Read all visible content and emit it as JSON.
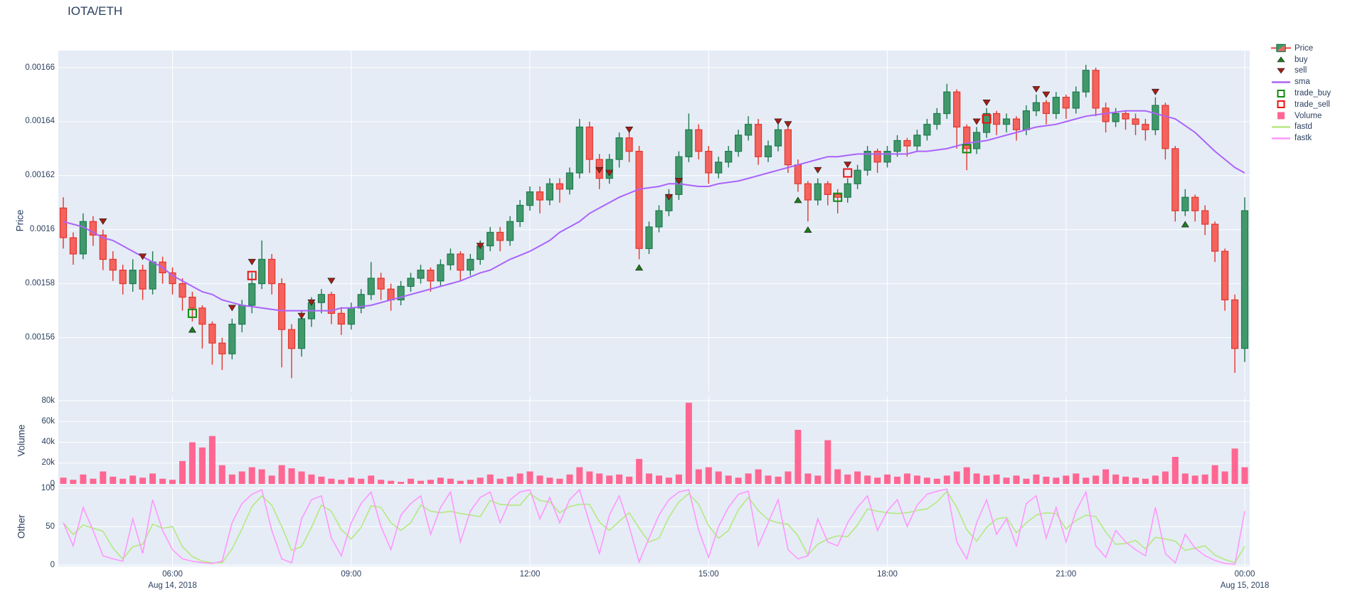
{
  "title": "IOTA/ETH",
  "colors": {
    "text": "#2a3f5f",
    "plot_bg": "#e5ecf6",
    "grid": "#ffffff",
    "inc_line": "#1f7a4d",
    "inc_fill": "#41996b",
    "dec_line": "#e3362c",
    "dec_fill": "#f4635e",
    "sma": "#ab63fa",
    "volume": "#ff6692",
    "fastd": "#b6e880",
    "fastk": "#ff97ff",
    "buy": "#1e7b1e",
    "sell": "#a61e14",
    "marker_edge": "#1a1a1a",
    "trade_buy": "#0c8a0c",
    "trade_sell": "#ee1111"
  },
  "axes": {
    "price": {
      "title": "Price",
      "ticks": [
        {
          "label": "0.00166",
          "v": 1660
        },
        {
          "label": "0.00164",
          "v": 1640
        },
        {
          "label": "0.00162",
          "v": 1620
        },
        {
          "label": "0.0016",
          "v": 1600
        },
        {
          "label": "0.00158",
          "v": 1580
        },
        {
          "label": "0.00156",
          "v": 1560
        }
      ]
    },
    "volume": {
      "title": "Volume",
      "ticks": [
        {
          "label": "80k",
          "v": 80
        },
        {
          "label": "60k",
          "v": 60
        },
        {
          "label": "40k",
          "v": 40
        },
        {
          "label": "20k",
          "v": 20
        },
        {
          "label": "0",
          "v": 0
        }
      ]
    },
    "other": {
      "title": "Other",
      "ticks": [
        {
          "label": "100",
          "v": 100
        },
        {
          "label": "50",
          "v": 50
        },
        {
          "label": "0",
          "v": 0
        }
      ]
    },
    "x": {
      "ticks": [
        {
          "label": "06:00",
          "t": 360
        },
        {
          "label": "09:00",
          "t": 540
        },
        {
          "label": "12:00",
          "t": 720
        },
        {
          "label": "15:00",
          "t": 900
        },
        {
          "label": "18:00",
          "t": 1080
        },
        {
          "label": "21:00",
          "t": 1260
        },
        {
          "label": "00:00",
          "t": 1440
        }
      ],
      "date_labels": [
        {
          "label": "Aug 14, 2018",
          "t": 360
        },
        {
          "label": "Aug 15, 2018",
          "t": 1440
        }
      ]
    }
  },
  "legend": {
    "items": [
      {
        "label": "Price",
        "type": "candle"
      },
      {
        "label": "buy",
        "type": "triangle-up",
        "color_key": "buy"
      },
      {
        "label": "sell",
        "type": "triangle-down",
        "color_key": "sell"
      },
      {
        "label": "sma",
        "type": "line",
        "color_key": "sma"
      },
      {
        "label": "trade_buy",
        "type": "open-square",
        "color_key": "trade_buy"
      },
      {
        "label": "trade_sell",
        "type": "open-square",
        "color_key": "trade_sell"
      },
      {
        "label": "Volume",
        "type": "square",
        "color_key": "volume"
      },
      {
        "label": "fastd",
        "type": "line",
        "color_key": "fastd"
      },
      {
        "label": "fastk",
        "type": "line",
        "color_key": "fastk"
      }
    ]
  },
  "chart_data": {
    "type": "candlestick-with-indicators",
    "pair": "IOTA/ETH",
    "time_start_min": 250,
    "interval_min": 10,
    "price_scale": 1e-06,
    "note": "prices stored as ETH * 1e6 (1597 = 0.001597); volume in thousands; times are minutes from 00:00 Aug 14 2018, wrapping past 1440 to Aug 15",
    "x_range_min": [
      245,
      1445
    ],
    "price_axis_range": [
      1540,
      1666
    ],
    "volume_axis_range_k": [
      0,
      85
    ],
    "other_axis_range": [
      0,
      100
    ],
    "candles": [
      [
        1608,
        1612,
        1593,
        1597
      ],
      [
        1597,
        1599,
        1587,
        1591
      ],
      [
        1591,
        1606,
        1589,
        1603
      ],
      [
        1603,
        1605,
        1594,
        1598
      ],
      [
        1598,
        1600,
        1585,
        1589
      ],
      [
        1589,
        1592,
        1581,
        1585
      ],
      [
        1585,
        1587,
        1576,
        1580
      ],
      [
        1580,
        1589,
        1577,
        1585
      ],
      [
        1585,
        1587,
        1574,
        1578
      ],
      [
        1578,
        1592,
        1576,
        1588
      ],
      [
        1588,
        1590,
        1580,
        1584
      ],
      [
        1584,
        1586,
        1576,
        1580
      ],
      [
        1580,
        1582,
        1570,
        1575
      ],
      [
        1575,
        1577,
        1566,
        1571
      ],
      [
        1571,
        1572,
        1556,
        1565
      ],
      [
        1565,
        1566,
        1550,
        1558
      ],
      [
        1558,
        1560,
        1548,
        1554
      ],
      [
        1554,
        1567,
        1552,
        1565
      ],
      [
        1565,
        1574,
        1562,
        1572
      ],
      [
        1572,
        1584,
        1569,
        1580
      ],
      [
        1580,
        1596,
        1578,
        1589
      ],
      [
        1589,
        1591,
        1576,
        1580
      ],
      [
        1580,
        1582,
        1549,
        1563
      ],
      [
        1563,
        1565,
        1545,
        1556
      ],
      [
        1556,
        1570,
        1553,
        1567
      ],
      [
        1567,
        1575,
        1564,
        1573
      ],
      [
        1573,
        1578,
        1569,
        1576
      ],
      [
        1576,
        1577,
        1565,
        1569
      ],
      [
        1569,
        1571,
        1561,
        1565
      ],
      [
        1565,
        1573,
        1563,
        1571
      ],
      [
        1571,
        1578,
        1569,
        1576
      ],
      [
        1576,
        1588,
        1574,
        1582
      ],
      [
        1582,
        1584,
        1574,
        1578
      ],
      [
        1578,
        1580,
        1570,
        1574
      ],
      [
        1574,
        1581,
        1572,
        1579
      ],
      [
        1579,
        1584,
        1577,
        1582
      ],
      [
        1582,
        1587,
        1580,
        1585
      ],
      [
        1585,
        1586,
        1577,
        1581
      ],
      [
        1581,
        1589,
        1579,
        1587
      ],
      [
        1587,
        1593,
        1585,
        1591
      ],
      [
        1591,
        1592,
        1581,
        1585
      ],
      [
        1585,
        1591,
        1583,
        1589
      ],
      [
        1589,
        1596,
        1587,
        1594
      ],
      [
        1594,
        1601,
        1592,
        1599
      ],
      [
        1599,
        1601,
        1592,
        1596
      ],
      [
        1596,
        1605,
        1594,
        1603
      ],
      [
        1603,
        1611,
        1601,
        1609
      ],
      [
        1609,
        1616,
        1607,
        1614
      ],
      [
        1614,
        1616,
        1606,
        1611
      ],
      [
        1611,
        1619,
        1609,
        1617
      ],
      [
        1617,
        1619,
        1610,
        1615
      ],
      [
        1615,
        1623,
        1613,
        1621
      ],
      [
        1621,
        1641,
        1619,
        1638
      ],
      [
        1638,
        1640,
        1621,
        1626
      ],
      [
        1626,
        1628,
        1615,
        1619
      ],
      [
        1619,
        1628,
        1617,
        1626
      ],
      [
        1626,
        1636,
        1623,
        1634
      ],
      [
        1634,
        1637,
        1625,
        1629
      ],
      [
        1629,
        1631,
        1589,
        1593
      ],
      [
        1593,
        1603,
        1591,
        1601
      ],
      [
        1601,
        1609,
        1599,
        1607
      ],
      [
        1607,
        1615,
        1605,
        1613
      ],
      [
        1613,
        1629,
        1611,
        1627
      ],
      [
        1627,
        1643,
        1625,
        1637
      ],
      [
        1637,
        1639,
        1626,
        1629
      ],
      [
        1629,
        1631,
        1617,
        1621
      ],
      [
        1621,
        1627,
        1619,
        1625
      ],
      [
        1625,
        1631,
        1623,
        1629
      ],
      [
        1629,
        1637,
        1627,
        1635
      ],
      [
        1635,
        1642,
        1633,
        1639
      ],
      [
        1639,
        1641,
        1624,
        1627
      ],
      [
        1627,
        1633,
        1625,
        1631
      ],
      [
        1631,
        1639,
        1629,
        1637
      ],
      [
        1637,
        1638,
        1621,
        1624
      ],
      [
        1624,
        1626,
        1614,
        1617
      ],
      [
        1617,
        1618,
        1603,
        1611
      ],
      [
        1611,
        1619,
        1609,
        1617
      ],
      [
        1617,
        1618,
        1609,
        1613
      ],
      [
        1613,
        1615,
        1606,
        1612
      ],
      [
        1612,
        1619,
        1610,
        1617
      ],
      [
        1617,
        1624,
        1615,
        1622
      ],
      [
        1622,
        1631,
        1620,
        1629
      ],
      [
        1629,
        1630,
        1621,
        1625
      ],
      [
        1625,
        1631,
        1623,
        1629
      ],
      [
        1629,
        1635,
        1627,
        1633
      ],
      [
        1633,
        1634,
        1627,
        1631
      ],
      [
        1631,
        1637,
        1629,
        1635
      ],
      [
        1635,
        1641,
        1633,
        1639
      ],
      [
        1639,
        1645,
        1637,
        1643
      ],
      [
        1643,
        1654,
        1641,
        1651
      ],
      [
        1651,
        1652,
        1630,
        1638
      ],
      [
        1638,
        1639,
        1622,
        1630
      ],
      [
        1630,
        1638,
        1628,
        1636
      ],
      [
        1636,
        1645,
        1634,
        1643
      ],
      [
        1643,
        1644,
        1635,
        1639
      ],
      [
        1639,
        1643,
        1636,
        1641
      ],
      [
        1641,
        1642,
        1633,
        1637
      ],
      [
        1637,
        1646,
        1635,
        1644
      ],
      [
        1644,
        1650,
        1642,
        1647
      ],
      [
        1647,
        1648,
        1639,
        1643
      ],
      [
        1643,
        1651,
        1641,
        1649
      ],
      [
        1649,
        1650,
        1641,
        1645
      ],
      [
        1645,
        1653,
        1643,
        1651
      ],
      [
        1651,
        1661,
        1649,
        1659
      ],
      [
        1659,
        1660,
        1642,
        1645
      ],
      [
        1645,
        1647,
        1636,
        1640
      ],
      [
        1640,
        1645,
        1638,
        1643
      ],
      [
        1643,
        1644,
        1637,
        1641
      ],
      [
        1641,
        1643,
        1635,
        1639
      ],
      [
        1639,
        1641,
        1633,
        1637
      ],
      [
        1637,
        1649,
        1635,
        1646
      ],
      [
        1646,
        1647,
        1626,
        1630
      ],
      [
        1630,
        1631,
        1603,
        1607
      ],
      [
        1607,
        1615,
        1605,
        1612
      ],
      [
        1612,
        1613,
        1603,
        1607
      ],
      [
        1607,
        1609,
        1598,
        1602
      ],
      [
        1602,
        1603,
        1588,
        1592
      ],
      [
        1592,
        1593,
        1570,
        1574
      ],
      [
        1574,
        1576,
        1547,
        1556
      ],
      [
        1556,
        1612,
        1551,
        1607
      ]
    ],
    "sma": [
      1603,
      1602,
      1601,
      1599,
      1597,
      1596,
      1594,
      1592,
      1590,
      1588,
      1586,
      1583,
      1581,
      1579,
      1577,
      1576,
      1574,
      1573,
      1572,
      1571.5,
      1571,
      1570.5,
      1570,
      1570,
      1570,
      1570,
      1570,
      1570,
      1571,
      1571,
      1571.5,
      1572,
      1573,
      1574,
      1575,
      1576,
      1577,
      1578,
      1579,
      1580,
      1581,
      1582.5,
      1584,
      1585,
      1587,
      1589,
      1590.5,
      1592,
      1594,
      1596,
      1599,
      1601,
      1603,
      1606,
      1608,
      1610,
      1612,
      1613.5,
      1615,
      1615.5,
      1616,
      1617,
      1617,
      1616.5,
      1616,
      1616,
      1617,
      1617.5,
      1618,
      1619,
      1620,
      1621,
      1622,
      1623,
      1624,
      1625,
      1626,
      1627,
      1627,
      1627.5,
      1628,
      1628,
      1628,
      1628,
      1628,
      1628,
      1629,
      1629,
      1629.5,
      1630,
      1631,
      1632,
      1632.5,
      1633,
      1634,
      1635,
      1636,
      1637,
      1638,
      1638.5,
      1639,
      1640,
      1641,
      1642,
      1642.5,
      1643,
      1643.5,
      1644,
      1644,
      1644,
      1643,
      1642,
      1641,
      1638.5,
      1636,
      1632.5,
      1629,
      1626,
      1623,
      1621
    ],
    "volume_k": [
      6,
      4,
      9,
      5,
      12,
      7,
      5,
      8,
      6,
      10,
      5,
      4,
      22,
      40,
      35,
      46,
      18,
      9,
      12,
      16,
      14,
      8,
      18,
      15,
      12,
      9,
      7,
      5,
      4,
      6,
      5,
      8,
      4,
      3,
      2,
      5,
      3,
      4,
      6,
      5,
      3,
      4,
      6,
      9,
      5,
      7,
      10,
      12,
      8,
      6,
      5,
      9,
      16,
      12,
      10,
      8,
      9,
      7,
      24,
      10,
      8,
      6,
      9,
      78,
      14,
      16,
      12,
      8,
      6,
      10,
      14,
      8,
      7,
      12,
      52,
      10,
      8,
      42,
      14,
      9,
      12,
      8,
      6,
      9,
      7,
      10,
      8,
      6,
      5,
      8,
      12,
      16,
      10,
      8,
      9,
      6,
      8,
      5,
      9,
      7,
      6,
      8,
      10,
      6,
      8,
      14,
      9,
      7,
      6,
      5,
      8,
      12,
      26,
      10,
      8,
      9,
      18,
      12,
      34,
      16
    ],
    "fastk": [
      55,
      25,
      75,
      45,
      12,
      8,
      5,
      60,
      15,
      85,
      45,
      20,
      8,
      5,
      3,
      2,
      5,
      55,
      80,
      92,
      98,
      45,
      8,
      3,
      60,
      85,
      90,
      35,
      12,
      55,
      80,
      95,
      50,
      20,
      65,
      80,
      90,
      40,
      75,
      95,
      30,
      70,
      88,
      95,
      55,
      85,
      95,
      98,
      60,
      88,
      55,
      85,
      98,
      55,
      15,
      65,
      90,
      50,
      4,
      35,
      65,
      85,
      95,
      98,
      45,
      10,
      50,
      75,
      92,
      96,
      25,
      55,
      85,
      20,
      8,
      12,
      60,
      30,
      25,
      55,
      75,
      90,
      45,
      70,
      85,
      50,
      78,
      92,
      96,
      99,
      30,
      8,
      55,
      85,
      40,
      60,
      25,
      80,
      90,
      35,
      75,
      30,
      70,
      95,
      25,
      10,
      45,
      30,
      20,
      12,
      75,
      15,
      3,
      40,
      22,
      12,
      6,
      2,
      1,
      70
    ],
    "fastd": [
      55,
      40,
      52,
      48,
      44,
      22,
      8,
      24,
      27,
      53,
      48,
      50,
      24,
      11,
      5,
      3,
      3,
      21,
      47,
      76,
      90,
      78,
      50,
      19,
      24,
      49,
      78,
      70,
      46,
      34,
      49,
      77,
      75,
      55,
      45,
      55,
      78,
      70,
      68,
      70,
      67,
      65,
      63,
      84,
      79,
      78,
      78,
      93,
      84,
      82,
      68,
      76,
      79,
      79,
      56,
      45,
      57,
      68,
      48,
      30,
      35,
      62,
      82,
      93,
      79,
      51,
      35,
      45,
      72,
      88,
      71,
      59,
      55,
      53,
      38,
      13,
      27,
      34,
      38,
      37,
      52,
      73,
      70,
      68,
      67,
      68,
      71,
      73,
      82,
      96,
      75,
      46,
      31,
      49,
      60,
      62,
      42,
      55,
      65,
      68,
      67,
      47,
      58,
      65,
      63,
      43,
      27,
      28,
      32,
      21,
      36,
      34,
      31,
      19,
      22,
      25,
      13,
      7,
      3,
      24
    ],
    "markers": {
      "buy": [
        [
          13,
          1563
        ],
        [
          58,
          1586
        ],
        [
          74,
          1611
        ],
        [
          75,
          1600
        ],
        [
          113,
          1602
        ]
      ],
      "sell": [
        [
          4,
          1603
        ],
        [
          8,
          1590
        ],
        [
          17,
          1571
        ],
        [
          19,
          1588
        ],
        [
          24,
          1568
        ],
        [
          25,
          1573
        ],
        [
          27,
          1581
        ],
        [
          42,
          1594
        ],
        [
          54,
          1622
        ],
        [
          55,
          1621
        ],
        [
          57,
          1637
        ],
        [
          61,
          1612
        ],
        [
          62,
          1618
        ],
        [
          72,
          1640
        ],
        [
          73,
          1639
        ],
        [
          76,
          1622
        ],
        [
          79,
          1624
        ],
        [
          92,
          1640
        ],
        [
          93,
          1647
        ],
        [
          98,
          1652
        ],
        [
          99,
          1650
        ],
        [
          110,
          1651
        ]
      ],
      "trade_buy": [
        [
          13,
          1569
        ],
        [
          78,
          1612
        ],
        [
          91,
          1630
        ]
      ],
      "trade_sell": [
        [
          19,
          1583
        ],
        [
          79,
          1621
        ],
        [
          93,
          1641
        ]
      ]
    }
  }
}
